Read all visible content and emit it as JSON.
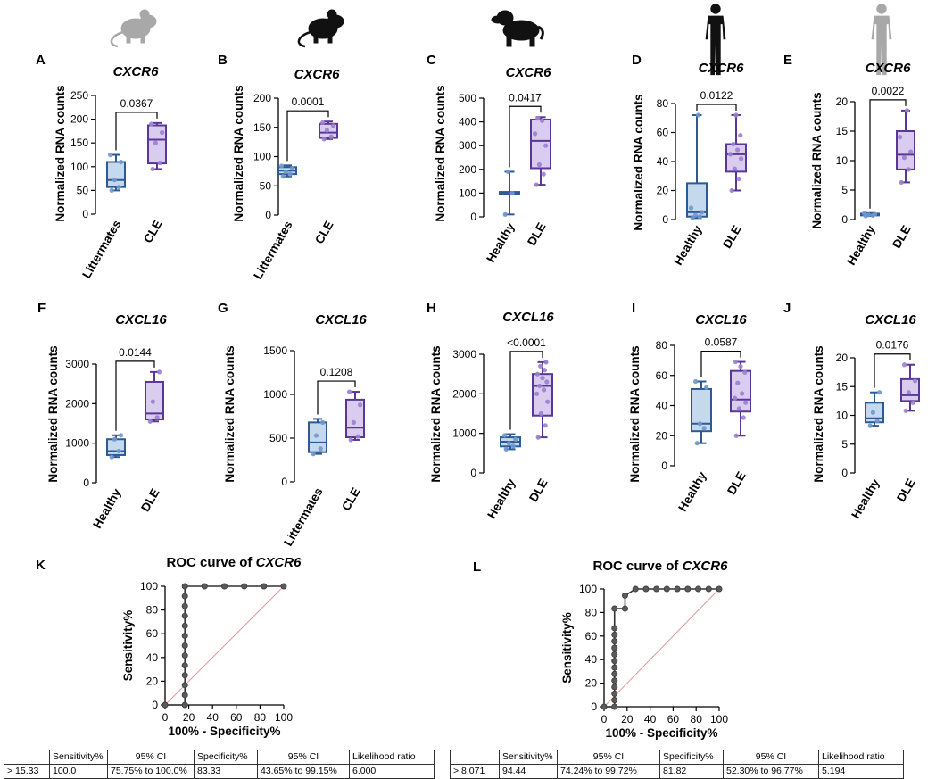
{
  "panel_letters": [
    "A",
    "B",
    "C",
    "D",
    "E",
    "F",
    "G",
    "H",
    "I",
    "J",
    "K",
    "L"
  ],
  "y_axis_label": "Normalized RNA counts",
  "species_icons": [
    "gray-mouse-icon",
    "black-mouse-icon",
    "dog-icon",
    "black-human-icon",
    "gray-human-icon"
  ],
  "colors": {
    "blue_fill": "#c4d8ee",
    "blue_stroke": "#2e5a94",
    "blue_point": "#6f97cd",
    "purple_fill": "#d9ccef",
    "purple_stroke": "#5a3796",
    "purple_point": "#9a80cf",
    "roc_point": "#5a5a5a",
    "diagonal": "#e29a9a"
  },
  "chart_data": [
    {
      "type": "box",
      "panel": "A",
      "title": "CXCR6",
      "ylabel": "Normalized RNA counts",
      "ylim": [
        0,
        250
      ],
      "yticks": [
        0,
        50,
        100,
        150,
        200,
        250
      ],
      "categories": [
        "Littermates",
        "CLE"
      ],
      "pvalue": "0.0367",
      "boxes": [
        {
          "min": 50,
          "q1": 57,
          "median": 72,
          "q3": 110,
          "max": 125,
          "points": [
            50,
            57,
            72,
            110,
            125
          ]
        },
        {
          "min": 95,
          "q1": 107,
          "median": 157,
          "q3": 187,
          "max": 192,
          "points": [
            95,
            108,
            150,
            172,
            190
          ]
        }
      ]
    },
    {
      "type": "box",
      "panel": "B",
      "title": "CXCR6",
      "ylabel": "Normalized RNA counts",
      "ylim": [
        0,
        200
      ],
      "yticks": [
        0,
        50,
        100,
        150,
        200
      ],
      "categories": [
        "Littermates",
        "CLE"
      ],
      "pvalue": "0.0001",
      "boxes": [
        {
          "min": 66,
          "q1": 70,
          "median": 76,
          "q3": 82,
          "max": 85,
          "points": [
            66,
            70,
            74,
            80,
            84
          ]
        },
        {
          "min": 130,
          "q1": 132,
          "median": 141,
          "q3": 156,
          "max": 160,
          "points": [
            130,
            134,
            145,
            153,
            158
          ]
        }
      ]
    },
    {
      "type": "box",
      "panel": "C",
      "title": "CXCR6",
      "ylabel": "Normalized RNA counts",
      "ylim": [
        0,
        500
      ],
      "yticks": [
        0,
        100,
        200,
        300,
        400,
        500
      ],
      "categories": [
        "Healthy",
        "DLE"
      ],
      "pvalue": "0.0417",
      "boxes": [
        {
          "min": 10,
          "q1": 95,
          "median": 100,
          "q3": 105,
          "max": 190,
          "points": [
            10,
            100,
            190
          ]
        },
        {
          "min": 135,
          "q1": 205,
          "median": 320,
          "q3": 410,
          "max": 420,
          "points": [
            135,
            180,
            220,
            300,
            350,
            405,
            415
          ]
        }
      ]
    },
    {
      "type": "box",
      "panel": "D",
      "title": "CXCR6",
      "ylabel": "Normalized RNA counts",
      "ylim": [
        0,
        80
      ],
      "yticks": [
        0,
        20,
        40,
        60,
        80
      ],
      "categories": [
        "Healthy",
        "DLE"
      ],
      "pvalue": "0.0122",
      "boxes": [
        {
          "min": 1,
          "q1": 2,
          "median": 5,
          "q3": 25,
          "max": 72,
          "points": [
            1,
            2,
            3,
            5,
            8,
            72
          ]
        },
        {
          "min": 20,
          "q1": 33,
          "median": 45,
          "q3": 52,
          "max": 72,
          "points": [
            20,
            28,
            35,
            42,
            45,
            48,
            52,
            58,
            72
          ]
        }
      ]
    },
    {
      "type": "box",
      "panel": "E",
      "title": "CXCR6",
      "ylabel": "Normalized RNA counts",
      "ylim": [
        0,
        20
      ],
      "yticks": [
        0,
        5,
        10,
        15,
        20
      ],
      "categories": [
        "Healthy",
        "DLE"
      ],
      "pvalue": "0.0022",
      "boxes": [
        {
          "min": 0.6,
          "q1": 0.7,
          "median": 0.8,
          "q3": 1.0,
          "max": 1.1,
          "points": [
            0.6,
            0.7,
            0.8,
            0.9,
            1.0
          ]
        },
        {
          "min": 6.3,
          "q1": 8.5,
          "median": 11,
          "q3": 15,
          "max": 18.5,
          "points": [
            6.3,
            8.5,
            10.5,
            11.5,
            14,
            18.5
          ]
        }
      ]
    },
    {
      "type": "box",
      "panel": "F",
      "title": "CXCL16",
      "ylabel": "Normalized RNA counts",
      "ylim": [
        0,
        3000
      ],
      "yticks": [
        0,
        1000,
        2000,
        3000
      ],
      "categories": [
        "Healthy",
        "DLE"
      ],
      "pvalue": "0.0144",
      "boxes": [
        {
          "min": 650,
          "q1": 700,
          "median": 800,
          "q3": 1100,
          "max": 1200,
          "points": [
            650,
            800,
            1100,
            1200
          ]
        },
        {
          "min": 1550,
          "q1": 1600,
          "median": 1750,
          "q3": 2550,
          "max": 2800,
          "points": [
            1550,
            1650,
            2050,
            2800
          ]
        }
      ]
    },
    {
      "type": "box",
      "panel": "G",
      "title": "CXCL16",
      "ylabel": "Normalized RNA counts",
      "ylim": [
        0,
        1500
      ],
      "yticks": [
        0,
        500,
        1000,
        1500
      ],
      "categories": [
        "Littermates",
        "CLE"
      ],
      "pvalue": "0.1208",
      "boxes": [
        {
          "min": 320,
          "q1": 340,
          "median": 450,
          "q3": 680,
          "max": 720,
          "points": [
            320,
            380,
            530,
            680
          ]
        },
        {
          "min": 480,
          "q1": 510,
          "median": 620,
          "q3": 940,
          "max": 1030,
          "points": [
            480,
            520,
            680,
            880,
            1030
          ]
        }
      ]
    },
    {
      "type": "box",
      "panel": "H",
      "title": "CXCL16",
      "ylabel": "Normalized RNA counts",
      "ylim": [
        0,
        3000
      ],
      "yticks": [
        0,
        1000,
        2000,
        3000
      ],
      "categories": [
        "Healthy",
        "DLE"
      ],
      "pvalue": "<0.0001",
      "boxes": [
        {
          "min": 600,
          "q1": 670,
          "median": 790,
          "q3": 900,
          "max": 980,
          "points": [
            600,
            680,
            750,
            850,
            950
          ]
        },
        {
          "min": 900,
          "q1": 1450,
          "median": 2200,
          "q3": 2500,
          "max": 2800,
          "points": [
            900,
            1200,
            1500,
            1800,
            2000,
            2100,
            2200,
            2300,
            2400,
            2500,
            2600,
            2700,
            2800
          ]
        }
      ]
    },
    {
      "type": "box",
      "panel": "I",
      "title": "CXCL16",
      "ylabel": "Normalized RNA counts",
      "ylim": [
        0,
        80
      ],
      "yticks": [
        0,
        20,
        40,
        60,
        80
      ],
      "categories": [
        "Healthy",
        "DLE"
      ],
      "pvalue": "0.0587",
      "boxes": [
        {
          "min": 15,
          "q1": 23,
          "median": 28,
          "q3": 51,
          "max": 56,
          "points": [
            15,
            25,
            28,
            52,
            56
          ]
        },
        {
          "min": 20,
          "q1": 36,
          "median": 44,
          "q3": 63,
          "max": 69,
          "points": [
            20,
            32,
            38,
            42,
            45,
            48,
            55,
            62,
            66,
            69
          ]
        }
      ]
    },
    {
      "type": "box",
      "panel": "J",
      "title": "CXCL16",
      "ylabel": "Normalized RNA counts",
      "ylim": [
        0,
        20
      ],
      "yticks": [
        0,
        5,
        10,
        15,
        20
      ],
      "categories": [
        "Healthy",
        "DLE"
      ],
      "pvalue": "0.0176",
      "boxes": [
        {
          "min": 8.2,
          "q1": 8.8,
          "median": 9.5,
          "q3": 12.2,
          "max": 14,
          "points": [
            8.2,
            9,
            10.5,
            14
          ]
        },
        {
          "min": 10.8,
          "q1": 12.5,
          "median": 13.5,
          "q3": 16.3,
          "max": 18.8,
          "points": [
            10.8,
            12.2,
            14,
            16,
            18.8
          ]
        }
      ]
    },
    {
      "type": "line",
      "panel": "K",
      "title_prefix": "ROC curve of ",
      "title_gene": "CXCR6",
      "xlabel": "100% - Specificity%",
      "ylabel": "Sensitivity%",
      "xlim": [
        0,
        100
      ],
      "ylim": [
        0,
        100
      ],
      "xticks": [
        0,
        20,
        40,
        60,
        80,
        100
      ],
      "yticks": [
        0,
        20,
        40,
        60,
        80,
        100
      ],
      "x": [
        0,
        16.7,
        16.7,
        16.7,
        16.7,
        16.7,
        16.7,
        16.7,
        16.7,
        16.7,
        16.7,
        16.7,
        16.7,
        16.7,
        33.3,
        50,
        66.7,
        83.3,
        100
      ],
      "y": [
        0,
        0,
        8.3,
        16.7,
        25,
        33.3,
        41.7,
        50,
        58.3,
        66.7,
        75,
        83.3,
        91.7,
        100,
        100,
        100,
        100,
        100,
        100
      ],
      "table": {
        "headers": [
          "",
          "Sensitivity%",
          "95% CI",
          "Specificity%",
          "95% CI",
          "Likelihood ratio"
        ],
        "row": [
          "> 15.33",
          "100.0",
          "75.75% to 100.0%",
          "83.33",
          "43.65% to 99.15%",
          "6.000"
        ]
      }
    },
    {
      "type": "line",
      "panel": "L",
      "title_prefix": "ROC curve of ",
      "title_gene": "CXCR6",
      "xlabel": "100% - Specificity%",
      "ylabel": "Sensitivity%",
      "xlim": [
        0,
        100
      ],
      "ylim": [
        0,
        100
      ],
      "xticks": [
        0,
        20,
        40,
        60,
        80,
        100
      ],
      "yticks": [
        0,
        20,
        40,
        60,
        80,
        100
      ],
      "x": [
        0,
        9.1,
        9.1,
        9.1,
        9.1,
        9.1,
        9.1,
        9.1,
        9.1,
        9.1,
        9.1,
        9.1,
        9.1,
        9.1,
        9.1,
        18.2,
        18.2,
        27.3,
        36.4,
        45.5,
        54.5,
        63.6,
        72.7,
        81.8,
        90.9,
        100
      ],
      "y": [
        0,
        0,
        5.6,
        11.1,
        16.7,
        22.2,
        27.8,
        33.3,
        38.9,
        44.4,
        50,
        55.6,
        61.1,
        66.7,
        83.3,
        83.3,
        94.4,
        100,
        100,
        100,
        100,
        100,
        100,
        100,
        100,
        100
      ],
      "table": {
        "headers": [
          "",
          "Sensitivity%",
          "95% CI",
          "Specificity%",
          "95% CI",
          "Likelihood ratio"
        ],
        "row": [
          "> 8.071",
          "94.44",
          "74.24% to 99.72%",
          "81.82",
          "52.30% to 96.77%",
          "5.194"
        ]
      }
    }
  ]
}
